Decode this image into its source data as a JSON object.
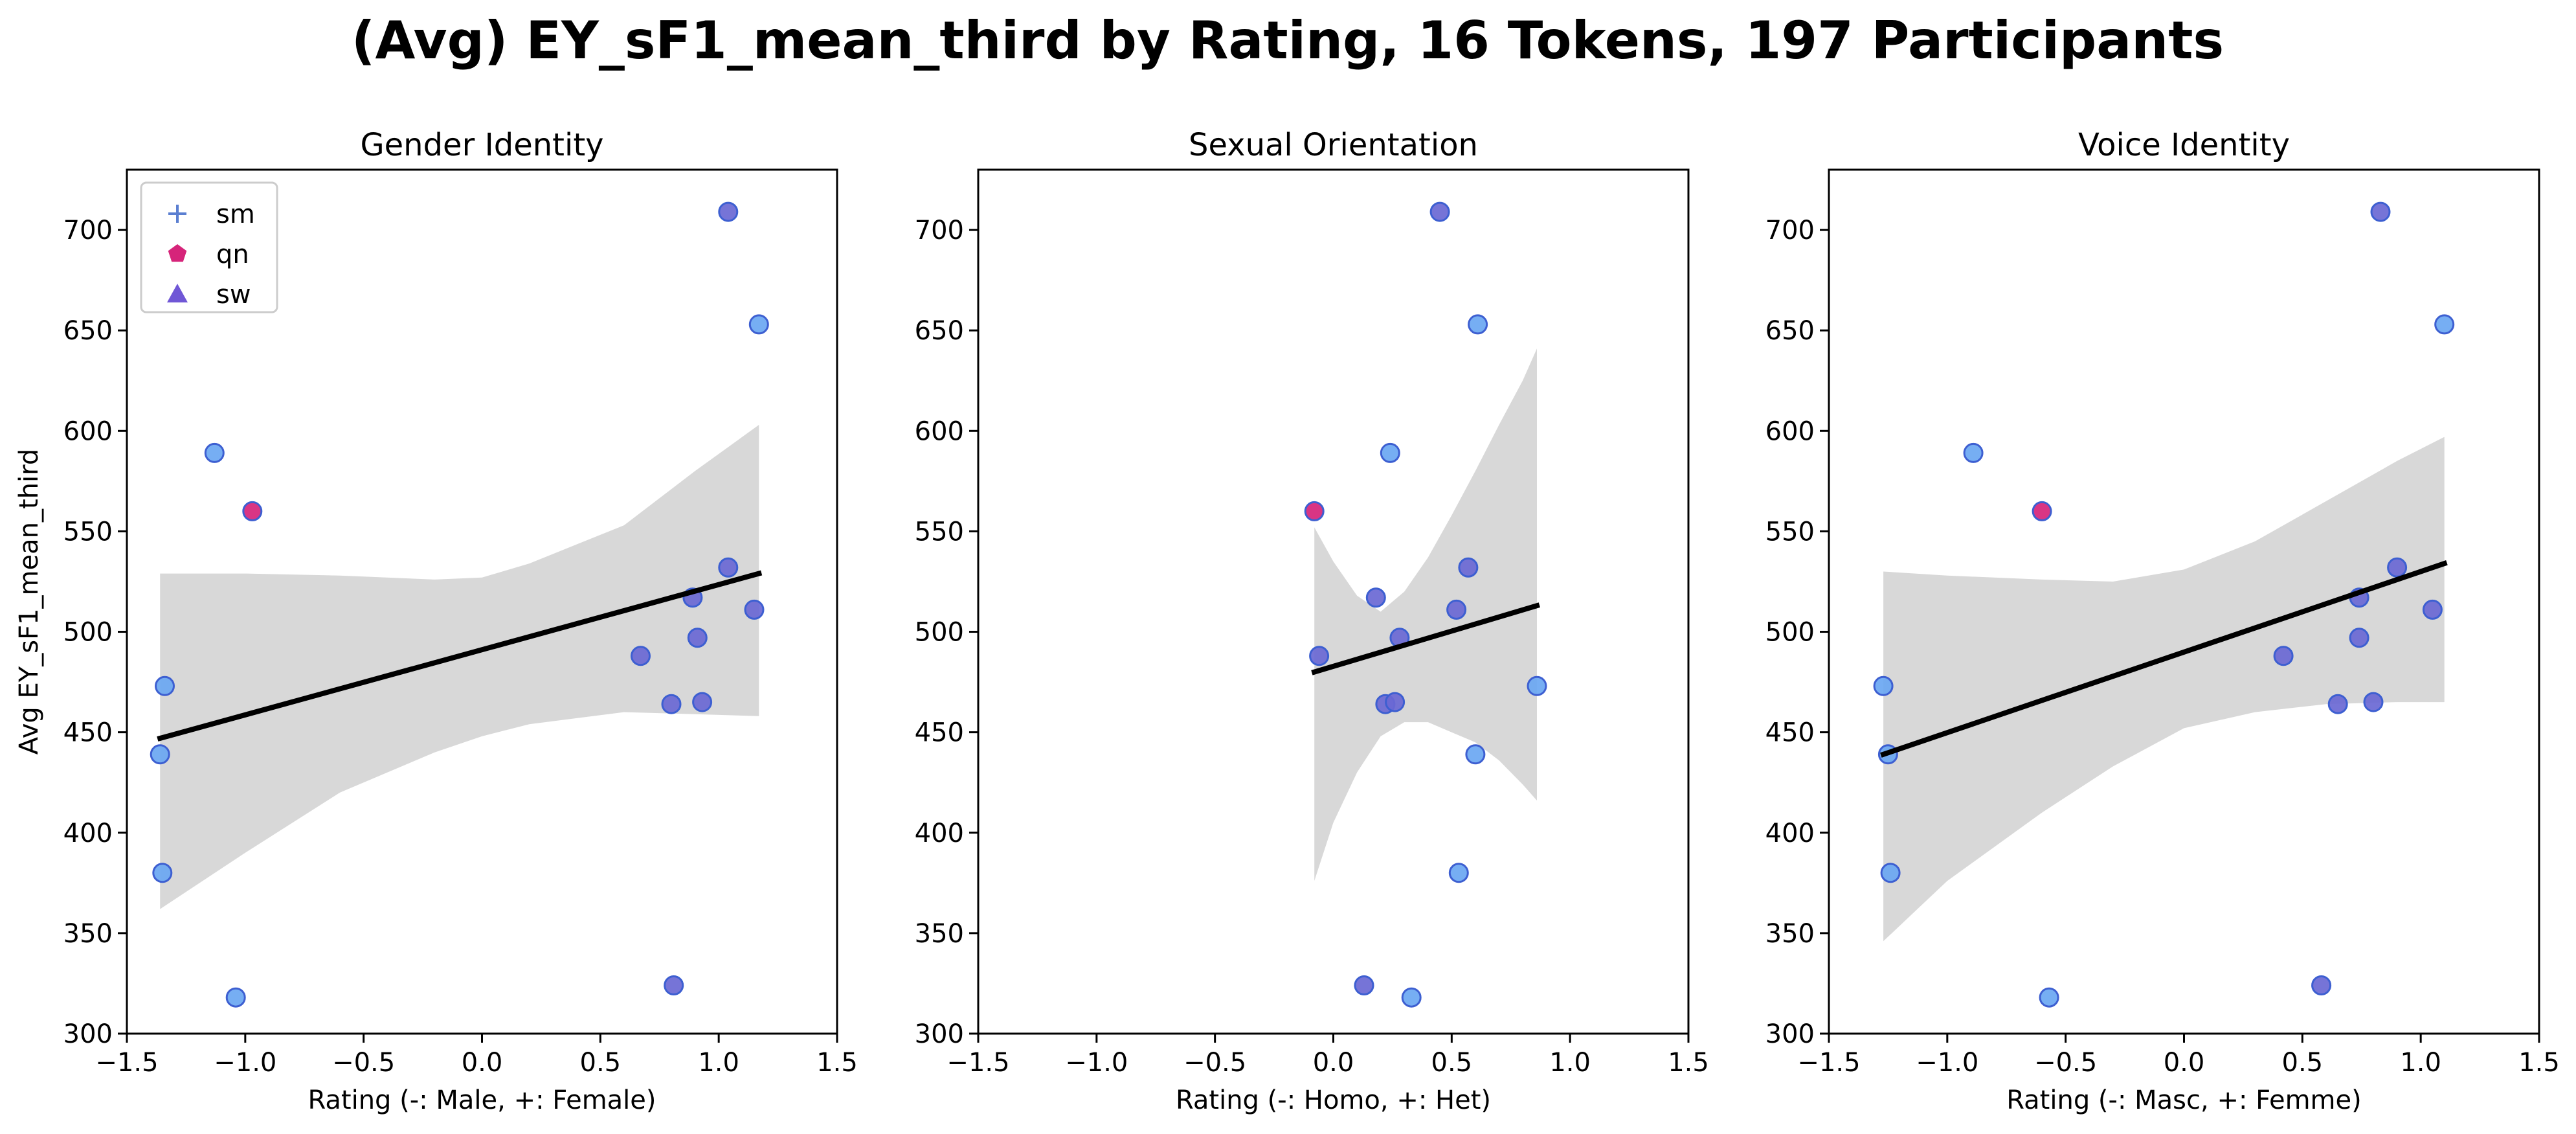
{
  "figure": {
    "title": "(Avg) EY_sF1_mean_third by Rating, 16 Tokens, 197 Participants"
  },
  "legend": {
    "placement": "top-left",
    "items": [
      {
        "label": "sm",
        "marker": "plus",
        "color": "#5b7fd1"
      },
      {
        "label": "qn",
        "marker": "pentagon",
        "color": "#d6247a"
      },
      {
        "label": "sw",
        "marker": "triangle",
        "color": "#7057d6"
      }
    ]
  },
  "colors": {
    "point_blue": "#6aa7f2",
    "point_purple": "#6a68d4",
    "point_pink": "#d6247a",
    "point_edge": "#3d5fd1",
    "regression_line": "#000000",
    "confidence_band": "#d8d8d8"
  },
  "chart_data": [
    {
      "type": "scatter",
      "title": "Gender Identity",
      "xlabel": "Rating (-: Male, +: Female)",
      "ylabel": "Avg EY_sF1_mean_third",
      "xlim": [
        -1.5,
        1.5
      ],
      "ylim": [
        300,
        730
      ],
      "xticks": [
        "−1.5",
        "−1.0",
        "−0.5",
        "0.0",
        "0.5",
        "1.0",
        "1.5"
      ],
      "yticks": [
        "300",
        "350",
        "400",
        "450",
        "500",
        "550",
        "600",
        "650",
        "700"
      ],
      "grid": false,
      "points": [
        {
          "x": 1.04,
          "y": 709,
          "cat": "purple"
        },
        {
          "x": 1.17,
          "y": 653,
          "cat": "blue"
        },
        {
          "x": -1.13,
          "y": 589,
          "cat": "blue"
        },
        {
          "x": -0.97,
          "y": 560,
          "cat": "pink"
        },
        {
          "x": 1.04,
          "y": 532,
          "cat": "purple"
        },
        {
          "x": 0.89,
          "y": 517,
          "cat": "purple"
        },
        {
          "x": 1.15,
          "y": 511,
          "cat": "purple"
        },
        {
          "x": 0.91,
          "y": 497,
          "cat": "purple"
        },
        {
          "x": 0.67,
          "y": 488,
          "cat": "purple"
        },
        {
          "x": -1.34,
          "y": 473,
          "cat": "blue"
        },
        {
          "x": 0.8,
          "y": 464,
          "cat": "purple"
        },
        {
          "x": 0.93,
          "y": 465,
          "cat": "purple"
        },
        {
          "x": -1.36,
          "y": 439,
          "cat": "blue"
        },
        {
          "x": -1.35,
          "y": 380,
          "cat": "blue"
        },
        {
          "x": 0.81,
          "y": 324,
          "cat": "purple"
        },
        {
          "x": -1.04,
          "y": 318,
          "cat": "blue"
        }
      ],
      "regression": {
        "x0": -1.36,
        "y0": 447,
        "x1": 1.17,
        "y1": 529
      },
      "band": {
        "x": [
          -1.36,
          -1.0,
          -0.6,
          -0.2,
          0.0,
          0.2,
          0.6,
          0.9,
          1.17
        ],
        "upper": [
          529,
          529,
          528,
          526,
          527,
          534,
          553,
          580,
          603
        ],
        "lower": [
          362,
          390,
          420,
          440,
          448,
          454,
          460,
          459,
          458
        ]
      }
    },
    {
      "type": "scatter",
      "title": "Sexual Orientation",
      "xlabel": "Rating (-: Homo, +: Het)",
      "ylabel": "",
      "xlim": [
        -1.5,
        1.5
      ],
      "ylim": [
        300,
        730
      ],
      "xticks": [
        "−1.5",
        "−1.0",
        "−0.5",
        "0.0",
        "0.5",
        "1.0",
        "1.5"
      ],
      "yticks": [
        "300",
        "350",
        "400",
        "450",
        "500",
        "550",
        "600",
        "650",
        "700"
      ],
      "grid": false,
      "points": [
        {
          "x": 0.45,
          "y": 709,
          "cat": "purple"
        },
        {
          "x": 0.61,
          "y": 653,
          "cat": "blue"
        },
        {
          "x": 0.24,
          "y": 589,
          "cat": "blue"
        },
        {
          "x": -0.08,
          "y": 560,
          "cat": "pink"
        },
        {
          "x": 0.57,
          "y": 532,
          "cat": "purple"
        },
        {
          "x": 0.18,
          "y": 517,
          "cat": "purple"
        },
        {
          "x": 0.52,
          "y": 511,
          "cat": "purple"
        },
        {
          "x": 0.28,
          "y": 497,
          "cat": "purple"
        },
        {
          "x": -0.06,
          "y": 488,
          "cat": "purple"
        },
        {
          "x": 0.86,
          "y": 473,
          "cat": "blue"
        },
        {
          "x": 0.22,
          "y": 464,
          "cat": "purple"
        },
        {
          "x": 0.26,
          "y": 465,
          "cat": "purple"
        },
        {
          "x": 0.6,
          "y": 439,
          "cat": "blue"
        },
        {
          "x": 0.53,
          "y": 380,
          "cat": "blue"
        },
        {
          "x": 0.13,
          "y": 324,
          "cat": "purple"
        },
        {
          "x": 0.33,
          "y": 318,
          "cat": "blue"
        }
      ],
      "regression": {
        "x0": -0.08,
        "y0": 480,
        "x1": 0.86,
        "y1": 513
      },
      "band": {
        "x": [
          -0.08,
          0.0,
          0.1,
          0.2,
          0.3,
          0.4,
          0.5,
          0.6,
          0.7,
          0.8,
          0.86
        ],
        "upper": [
          552,
          535,
          518,
          510,
          520,
          537,
          558,
          580,
          603,
          625,
          641
        ],
        "lower": [
          376,
          405,
          430,
          448,
          455,
          455,
          450,
          445,
          436,
          424,
          416
        ]
      }
    },
    {
      "type": "scatter",
      "title": "Voice Identity",
      "xlabel": "Rating (-: Masc, +: Femme)",
      "ylabel": "",
      "xlim": [
        -1.5,
        1.5
      ],
      "ylim": [
        300,
        730
      ],
      "xticks": [
        "−1.5",
        "−1.0",
        "−0.5",
        "0.0",
        "0.5",
        "1.0",
        "1.5"
      ],
      "yticks": [
        "300",
        "350",
        "400",
        "450",
        "500",
        "550",
        "600",
        "650",
        "700"
      ],
      "grid": false,
      "points": [
        {
          "x": 0.83,
          "y": 709,
          "cat": "purple"
        },
        {
          "x": 1.1,
          "y": 653,
          "cat": "blue"
        },
        {
          "x": -0.89,
          "y": 589,
          "cat": "blue"
        },
        {
          "x": -0.6,
          "y": 560,
          "cat": "pink"
        },
        {
          "x": 0.9,
          "y": 532,
          "cat": "purple"
        },
        {
          "x": 0.74,
          "y": 517,
          "cat": "purple"
        },
        {
          "x": 1.05,
          "y": 511,
          "cat": "purple"
        },
        {
          "x": 0.74,
          "y": 497,
          "cat": "purple"
        },
        {
          "x": 0.42,
          "y": 488,
          "cat": "purple"
        },
        {
          "x": -1.27,
          "y": 473,
          "cat": "blue"
        },
        {
          "x": 0.65,
          "y": 464,
          "cat": "purple"
        },
        {
          "x": 0.8,
          "y": 465,
          "cat": "purple"
        },
        {
          "x": -1.25,
          "y": 439,
          "cat": "blue"
        },
        {
          "x": -1.24,
          "y": 380,
          "cat": "blue"
        },
        {
          "x": 0.58,
          "y": 324,
          "cat": "purple"
        },
        {
          "x": -0.57,
          "y": 318,
          "cat": "blue"
        }
      ],
      "regression": {
        "x0": -1.27,
        "y0": 439,
        "x1": 1.1,
        "y1": 534
      },
      "band": {
        "x": [
          -1.27,
          -1.0,
          -0.6,
          -0.3,
          0.0,
          0.3,
          0.6,
          0.9,
          1.1
        ],
        "upper": [
          530,
          528,
          526,
          525,
          531,
          545,
          565,
          585,
          597
        ],
        "lower": [
          346,
          376,
          410,
          433,
          452,
          460,
          464,
          465,
          465
        ]
      }
    }
  ]
}
